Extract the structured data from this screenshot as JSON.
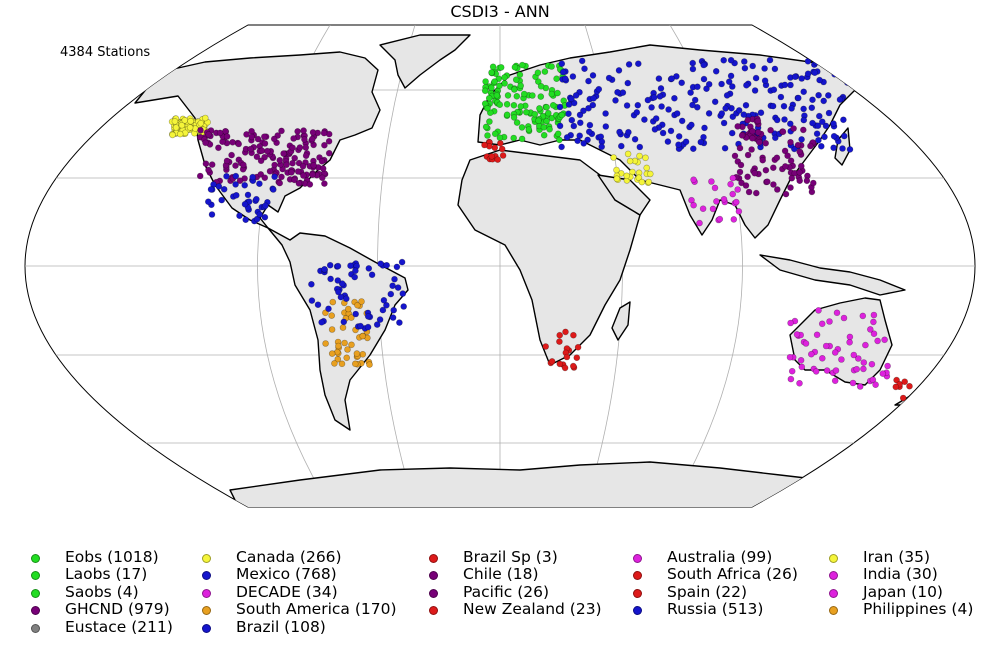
{
  "map": {
    "title": "CSDI3 - ANN",
    "station_count_label": "4384 Stations"
  },
  "legend": {
    "columns": [
      [
        {
          "label": "Eobs (1018)",
          "color": "#22dd22"
        },
        {
          "label": "Laobs (17)",
          "color": "#22dd22"
        },
        {
          "label": "Saobs (4)",
          "color": "#22dd22"
        },
        {
          "label": "GHCND (979)",
          "color": "#770077"
        },
        {
          "label": "Eustace (211)",
          "color": "#808080"
        }
      ],
      [
        {
          "label": "Canada (266)",
          "color": "#f5f53a"
        },
        {
          "label": "Mexico (768)",
          "color": "#1515cc"
        },
        {
          "label": "DECADE (34)",
          "color": "#dd22dd"
        },
        {
          "label": "South America (170)",
          "color": "#e8a020"
        },
        {
          "label": "Brazil (108)",
          "color": "#1515cc"
        }
      ],
      [
        {
          "label": "Brazil Sp (3)",
          "color": "#dd1a1a"
        },
        {
          "label": "Chile (18)",
          "color": "#770077"
        },
        {
          "label": "Pacific (26)",
          "color": "#770077"
        },
        {
          "label": "New Zealand (23)",
          "color": "#dd1a1a"
        }
      ],
      [
        {
          "label": "Australia (99)",
          "color": "#dd22dd"
        },
        {
          "label": "South Africa (26)",
          "color": "#dd1a1a"
        },
        {
          "label": "Spain (22)",
          "color": "#dd1a1a"
        },
        {
          "label": "Russia (513)",
          "color": "#1515cc"
        }
      ],
      [
        {
          "label": "Iran (35)",
          "color": "#f5f53a"
        },
        {
          "label": "India (30)",
          "color": "#dd22dd"
        },
        {
          "label": "Japan (10)",
          "color": "#dd22dd"
        },
        {
          "label": "Philippines (4)",
          "color": "#e8a020"
        }
      ]
    ]
  }
}
